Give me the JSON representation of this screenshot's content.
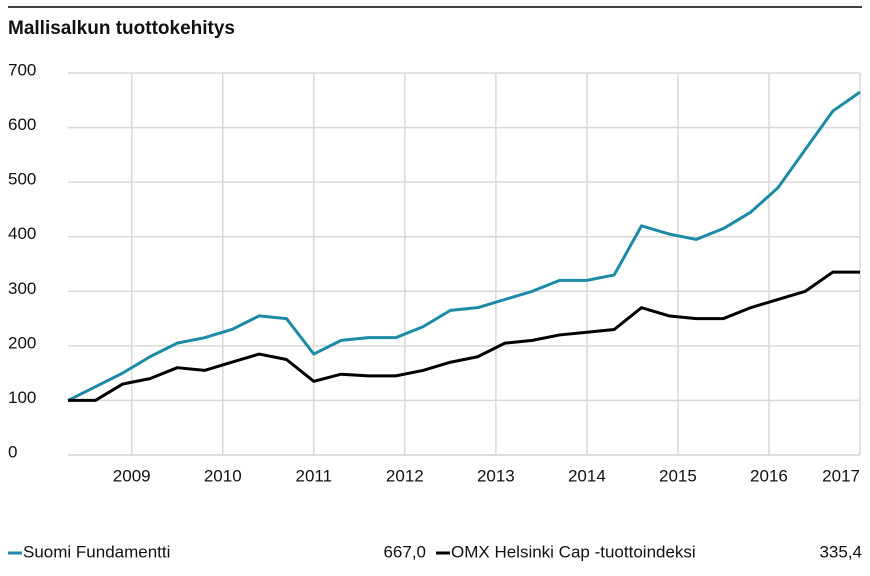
{
  "chart_data": {
    "type": "line",
    "title": "Mallisalkun tuottokehitys",
    "x": [
      2008.3,
      2008.6,
      2008.9,
      2009.2,
      2009.5,
      2009.8,
      2010.1,
      2010.4,
      2010.7,
      2011.0,
      2011.3,
      2011.6,
      2011.9,
      2012.2,
      2012.5,
      2012.8,
      2013.1,
      2013.4,
      2013.7,
      2014.0,
      2014.3,
      2014.6,
      2014.9,
      2015.2,
      2015.5,
      2015.8,
      2016.1,
      2016.4,
      2016.7,
      2017.0
    ],
    "series": [
      {
        "name": "Suomi Fundamentti",
        "color": "#1d8aa6",
        "latest": "667,0",
        "values": [
          100,
          125,
          150,
          180,
          205,
          215,
          230,
          255,
          250,
          185,
          210,
          215,
          215,
          235,
          265,
          270,
          285,
          300,
          320,
          320,
          330,
          420,
          405,
          395,
          415,
          445,
          490,
          560,
          630,
          665
        ]
      },
      {
        "name": "OMX Helsinki Cap -tuottoindeksi",
        "color": "#000000",
        "latest": "335,4",
        "values": [
          100,
          100,
          130,
          140,
          160,
          155,
          170,
          185,
          175,
          135,
          148,
          145,
          145,
          155,
          170,
          180,
          205,
          210,
          220,
          225,
          230,
          270,
          255,
          250,
          250,
          270,
          285,
          300,
          335,
          335
        ]
      }
    ],
    "xlim": [
      2008.3,
      2017.0
    ],
    "xticks": [
      2009,
      2010,
      2011,
      2012,
      2013,
      2014,
      2015,
      2016,
      2017
    ],
    "ylim": [
      0,
      700
    ],
    "yticks": [
      0,
      100,
      200,
      300,
      400,
      500,
      600,
      700
    ],
    "grid": true
  }
}
